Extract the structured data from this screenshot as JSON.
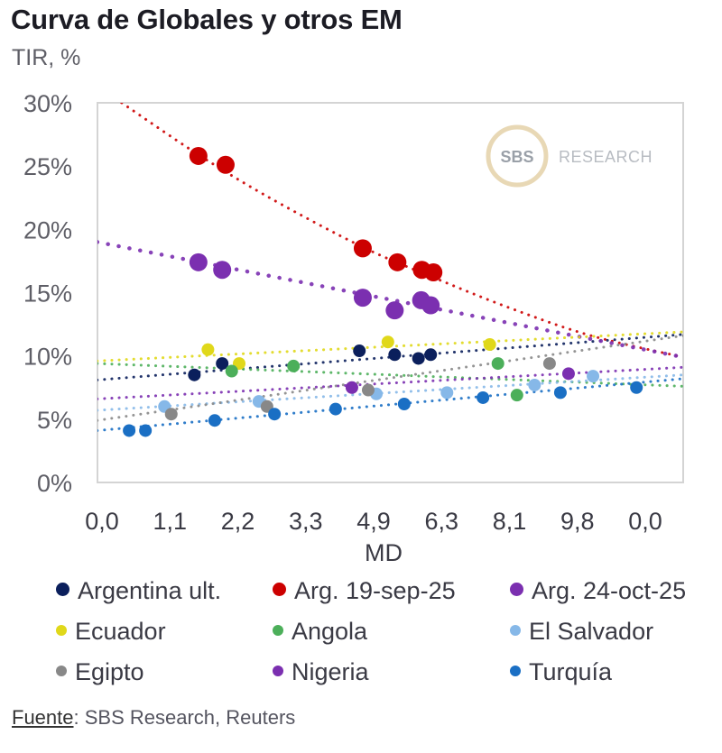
{
  "chart_data": {
    "type": "scatter",
    "title": "Curva de Globales y otros EM",
    "ylabel": "TIR, %",
    "xlabel": "MD",
    "ylim": [
      0,
      30
    ],
    "yticks": [
      0,
      5,
      10,
      15,
      20,
      25,
      30
    ],
    "ytick_labels": [
      "0%",
      "5%",
      "10%",
      "15%",
      "20%",
      "25%",
      "30%"
    ],
    "x_axis_kind": "category",
    "xtick_labels": [
      "0,0",
      "1,1",
      "2,2",
      "3,3",
      "4,9",
      "6,3",
      "8,1",
      "9,8",
      "0,0"
    ],
    "x_note": "x values are positions along the category axis (0 = first tick label, 8 = last tick label)",
    "xlim": [
      -0.07,
      8.56
    ],
    "grid": false,
    "legend_position": "bottom",
    "watermark": {
      "mark": "SBS",
      "text": "RESEARCH"
    },
    "series": [
      {
        "name": "Argentina ult.",
        "color": "#0b1f5c",
        "size": "medium",
        "points": [
          [
            1.36,
            8.5
          ],
          [
            1.77,
            9.4
          ],
          [
            3.79,
            10.4
          ],
          [
            4.31,
            10.1
          ],
          [
            4.66,
            9.8
          ],
          [
            4.84,
            10.1
          ]
        ],
        "trend": {
          "kind": "linear",
          "from": [
            -0.07,
            8.1
          ],
          "to": [
            8.56,
            11.7
          ]
        }
      },
      {
        "name": "Arg. 19-sep-25",
        "color": "#cc0000",
        "size": "large",
        "points": [
          [
            1.42,
            25.8
          ],
          [
            1.82,
            25.1
          ],
          [
            3.84,
            18.5
          ],
          [
            4.35,
            17.4
          ],
          [
            4.71,
            16.8
          ],
          [
            4.88,
            16.6
          ]
        ],
        "trend": {
          "kind": "curve",
          "samples": [
            [
              0.29,
              30.0
            ],
            [
              1.42,
              25.9
            ],
            [
              2.5,
              22.4
            ],
            [
              3.84,
              18.6
            ],
            [
              4.88,
              16.2
            ],
            [
              6.0,
              13.8
            ],
            [
              7.2,
              11.6
            ],
            [
              8.56,
              9.9
            ]
          ]
        }
      },
      {
        "name": "Arg. 24-oct-25",
        "color": "#7b2fb0",
        "size": "large",
        "points": [
          [
            1.42,
            17.4
          ],
          [
            1.77,
            16.8
          ],
          [
            3.84,
            14.6
          ],
          [
            4.31,
            13.6
          ],
          [
            4.7,
            14.4
          ],
          [
            4.84,
            14.0
          ]
        ],
        "trend": {
          "kind": "linear",
          "from": [
            -0.07,
            19.0
          ],
          "to": [
            8.56,
            9.9
          ]
        }
      },
      {
        "name": "Ecuador",
        "color": "#e0d81a",
        "size": "medium",
        "points": [
          [
            1.56,
            10.5
          ],
          [
            2.02,
            9.4
          ],
          [
            4.21,
            11.1
          ],
          [
            5.71,
            10.9
          ]
        ],
        "trend": {
          "kind": "linear",
          "from": [
            -0.07,
            9.6
          ],
          "to": [
            8.56,
            11.9
          ]
        }
      },
      {
        "name": "Angola",
        "color": "#4caf5a",
        "size": "medium",
        "points": [
          [
            1.91,
            8.8
          ],
          [
            2.82,
            9.2
          ],
          [
            5.83,
            9.4
          ],
          [
            6.11,
            6.9
          ]
        ],
        "trend": {
          "kind": "linear",
          "from": [
            -0.07,
            9.4
          ],
          "to": [
            8.56,
            7.6
          ]
        }
      },
      {
        "name": "El Salvador",
        "color": "#86b8e8",
        "size": "medium",
        "points": [
          [
            0.92,
            6.0
          ],
          [
            2.31,
            6.4
          ],
          [
            4.04,
            7.0
          ],
          [
            5.08,
            7.1
          ],
          [
            6.37,
            7.7
          ],
          [
            7.23,
            8.4
          ]
        ],
        "trend": {
          "kind": "linear",
          "from": [
            -0.07,
            5.7
          ],
          "to": [
            8.56,
            8.5
          ]
        }
      },
      {
        "name": "Egipto",
        "color": "#888888",
        "size": "medium",
        "points": [
          [
            1.02,
            5.4
          ],
          [
            2.43,
            6.0
          ],
          [
            3.92,
            7.3
          ],
          [
            6.59,
            9.4
          ]
        ],
        "trend": {
          "kind": "linear",
          "from": [
            -0.07,
            4.9
          ],
          "to": [
            8.56,
            11.6
          ]
        }
      },
      {
        "name": "Nigeria",
        "color": "#7b2fb0",
        "size": "medium",
        "points": [
          [
            3.68,
            7.5
          ],
          [
            6.87,
            8.6
          ]
        ],
        "trend": {
          "kind": "linear",
          "from": [
            -0.07,
            6.6
          ],
          "to": [
            8.56,
            9.1
          ]
        }
      },
      {
        "name": "Turquía",
        "color": "#1a6fc4",
        "size": "medium",
        "points": [
          [
            0.4,
            4.1
          ],
          [
            0.64,
            4.1
          ],
          [
            1.66,
            4.9
          ],
          [
            2.54,
            5.4
          ],
          [
            3.44,
            5.8
          ],
          [
            4.45,
            6.2
          ],
          [
            5.61,
            6.7
          ],
          [
            6.75,
            7.1
          ],
          [
            7.87,
            7.5
          ]
        ],
        "trend": {
          "kind": "linear",
          "from": [
            -0.07,
            4.1
          ],
          "to": [
            8.56,
            8.2
          ]
        }
      }
    ]
  },
  "source": {
    "label": "Fuente",
    "text": ": SBS Research, Reuters"
  }
}
